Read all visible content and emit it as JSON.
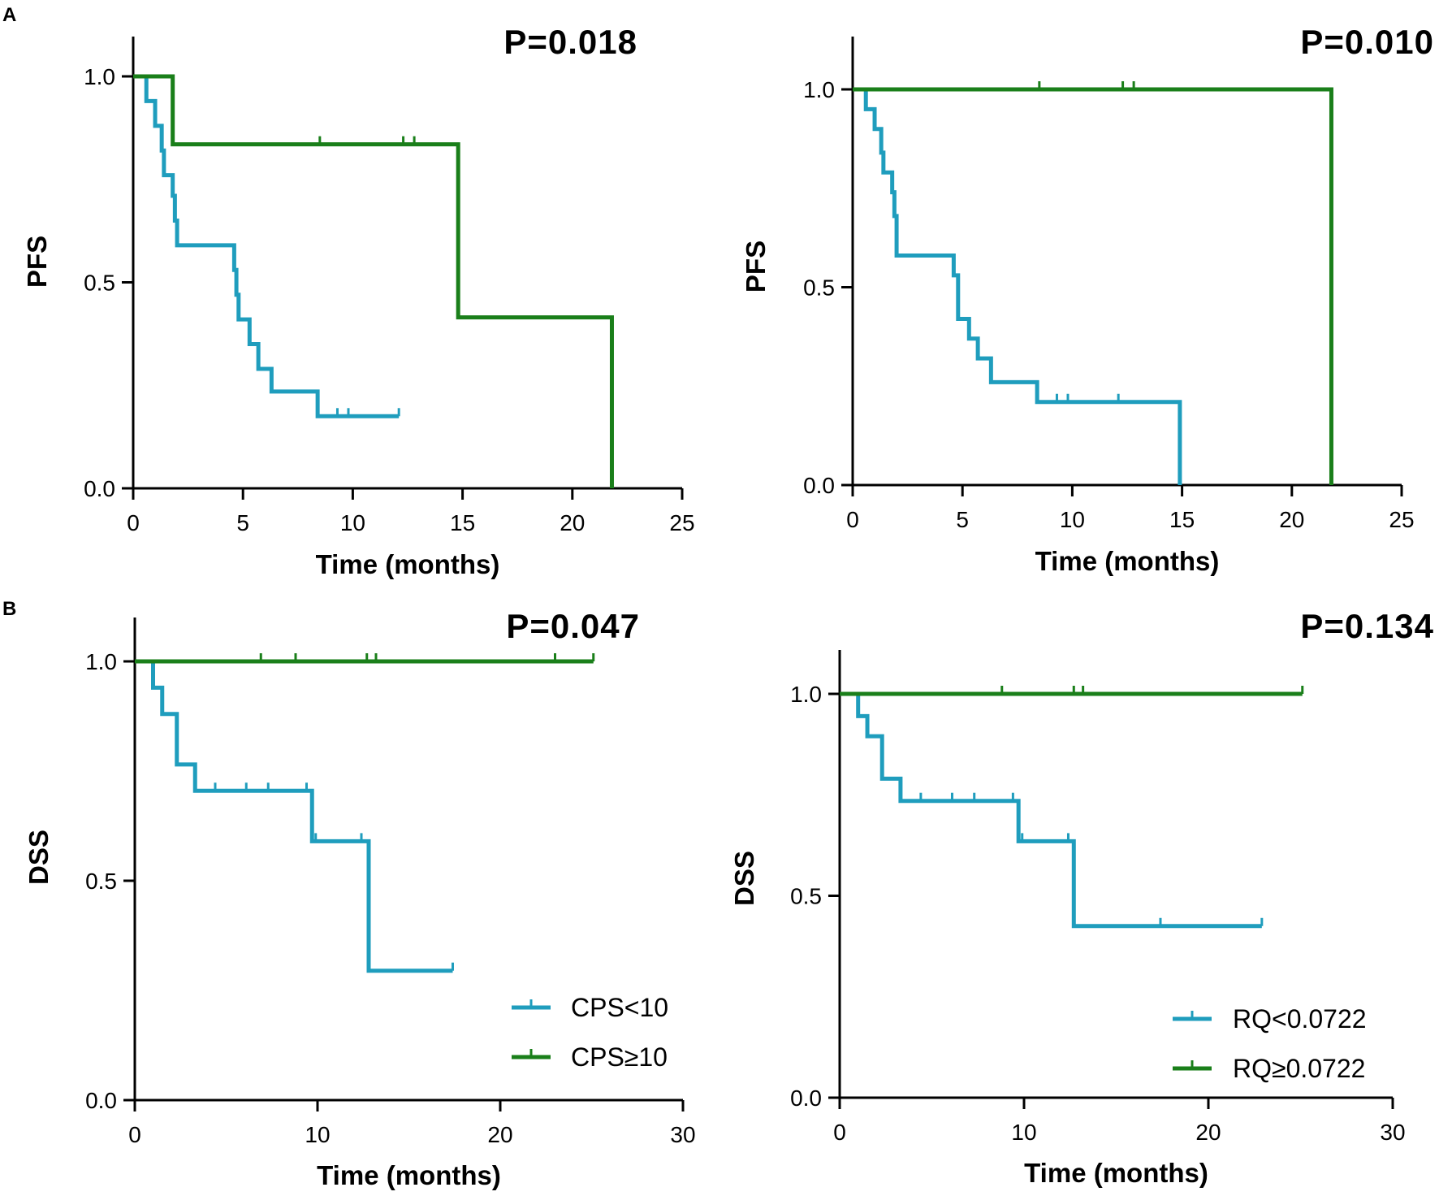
{
  "panel_labels": [
    "A",
    "B"
  ],
  "colors": {
    "group_low": "#1f9dbd",
    "group_high": "#1a7f1a",
    "axis": "#000000"
  },
  "chart_data": [
    {
      "type": "line",
      "subtype": "kaplan-meier",
      "panel": "A",
      "position": "top-left",
      "p_value": "P=0.018",
      "xlabel": "Time (months)",
      "ylabel": "PFS",
      "xlim": [
        0,
        25
      ],
      "ylim": [
        0,
        1.1
      ],
      "xticks": [
        0,
        5,
        10,
        15,
        20,
        25
      ],
      "xtick_labels": [
        "0",
        "5",
        "10",
        "15",
        "20",
        "25"
      ],
      "yticks": [
        0,
        0.5,
        1
      ],
      "ytick_labels": [
        "0.0",
        "0.5",
        "1.0"
      ],
      "series": [
        {
          "name": "CPS<10",
          "color": "#1f9dbd",
          "steps": [
            [
              0,
              1
            ],
            [
              0.6,
              0.94
            ],
            [
              1,
              0.88
            ],
            [
              1.3,
              0.82
            ],
            [
              1.4,
              0.76
            ],
            [
              1.8,
              0.71
            ],
            [
              1.9,
              0.65
            ],
            [
              2,
              0.59
            ],
            [
              4.6,
              0.53
            ],
            [
              4.7,
              0.47
            ],
            [
              4.8,
              0.41
            ],
            [
              5.3,
              0.35
            ],
            [
              5.7,
              0.29
            ],
            [
              6.3,
              0.235
            ],
            [
              8.4,
              0.175
            ]
          ],
          "end": 12.1,
          "censors": [
            [
              9.3,
              0.175
            ],
            [
              9.8,
              0.175
            ],
            [
              12.1,
              0.175
            ]
          ]
        },
        {
          "name": "CPS≥10",
          "color": "#1a7f1a",
          "steps": [
            [
              0,
              1
            ],
            [
              1.8,
              0.835
            ],
            [
              14.8,
              0.415
            ],
            [
              21.8,
              0
            ]
          ],
          "end": 21.8,
          "censors": [
            [
              8.5,
              0.835
            ],
            [
              12.3,
              0.835
            ],
            [
              12.8,
              0.835
            ]
          ]
        }
      ]
    },
    {
      "type": "line",
      "subtype": "kaplan-meier",
      "panel": "A",
      "position": "top-right",
      "p_value": "P=0.010",
      "xlabel": "Time (months)",
      "ylabel": "PFS",
      "xlim": [
        0,
        25
      ],
      "ylim": [
        0,
        1.1
      ],
      "xticks": [
        0,
        5,
        10,
        15,
        20,
        25
      ],
      "xtick_labels": [
        "0",
        "5",
        "10",
        "15",
        "20",
        "25"
      ],
      "yticks": [
        0,
        0.5,
        1
      ],
      "ytick_labels": [
        "0.0",
        "0.5",
        "1.0"
      ],
      "series": [
        {
          "name": "RQ<0.0722",
          "color": "#1f9dbd",
          "steps": [
            [
              0,
              1
            ],
            [
              0.6,
              0.95
            ],
            [
              1,
              0.9
            ],
            [
              1.3,
              0.84
            ],
            [
              1.4,
              0.79
            ],
            [
              1.8,
              0.74
            ],
            [
              1.9,
              0.68
            ],
            [
              2,
              0.58
            ],
            [
              4.6,
              0.53
            ],
            [
              4.8,
              0.42
            ],
            [
              5.3,
              0.37
            ],
            [
              5.7,
              0.32
            ],
            [
              6.3,
              0.26
            ],
            [
              8.4,
              0.21
            ],
            [
              14.9,
              0
            ]
          ],
          "end": 14.9,
          "censors": [
            [
              9.3,
              0.21
            ],
            [
              9.8,
              0.21
            ],
            [
              12.1,
              0.21
            ]
          ]
        },
        {
          "name": "RQ≥0.0722",
          "color": "#1a7f1a",
          "steps": [
            [
              0,
              1
            ],
            [
              21.8,
              0
            ]
          ],
          "end": 21.8,
          "censors": [
            [
              8.5,
              1
            ],
            [
              12.3,
              1
            ],
            [
              12.8,
              1
            ]
          ]
        }
      ]
    },
    {
      "type": "line",
      "subtype": "kaplan-meier",
      "panel": "B",
      "position": "bottom-left",
      "p_value": "P=0.047",
      "xlabel": "Time (months)",
      "ylabel": "DSS",
      "xlim": [
        0,
        30
      ],
      "ylim": [
        0,
        1.1
      ],
      "xticks": [
        0,
        10,
        20,
        30
      ],
      "xtick_labels": [
        "0",
        "10",
        "20",
        "30"
      ],
      "yticks": [
        0,
        0.5,
        1
      ],
      "ytick_labels": [
        "0.0",
        "0.5",
        "1.0"
      ],
      "series": [
        {
          "name": "CPS<10",
          "color": "#1f9dbd",
          "steps": [
            [
              0,
              1
            ],
            [
              1,
              0.94
            ],
            [
              1.5,
              0.88
            ],
            [
              2.3,
              0.765
            ],
            [
              3.3,
              0.705
            ],
            [
              9.7,
              0.59
            ],
            [
              12.8,
              0.295
            ]
          ],
          "end": 17.4,
          "censors": [
            [
              4.4,
              0.705
            ],
            [
              6.1,
              0.705
            ],
            [
              7.3,
              0.705
            ],
            [
              9.4,
              0.705
            ],
            [
              9.9,
              0.59
            ],
            [
              12.4,
              0.59
            ],
            [
              17.4,
              0.295
            ]
          ]
        },
        {
          "name": "CPS≥10",
          "color": "#1a7f1a",
          "steps": [
            [
              0,
              1
            ]
          ],
          "end": 25.1,
          "censors": [
            [
              6.9,
              1
            ],
            [
              8.8,
              1
            ],
            [
              12.7,
              1
            ],
            [
              13.2,
              1
            ],
            [
              23,
              1
            ],
            [
              25.1,
              1
            ]
          ]
        }
      ],
      "legend": {
        "location": "bottom-right",
        "entries": [
          "CPS<10",
          "CPS≥10"
        ]
      }
    },
    {
      "type": "line",
      "subtype": "kaplan-meier",
      "panel": "B",
      "position": "bottom-right",
      "p_value": "P=0.134",
      "xlabel": "Time (months)",
      "ylabel": "DSS",
      "xlim": [
        0,
        30
      ],
      "ylim": [
        0,
        1.1
      ],
      "xticks": [
        0,
        10,
        20,
        30
      ],
      "xtick_labels": [
        "0",
        "10",
        "20",
        "30"
      ],
      "yticks": [
        0,
        0.5,
        1
      ],
      "ytick_labels": [
        "0.0",
        "0.5",
        "1.0"
      ],
      "series": [
        {
          "name": "RQ<0.0722",
          "color": "#1f9dbd",
          "steps": [
            [
              0,
              1
            ],
            [
              1,
              0.945
            ],
            [
              1.5,
              0.895
            ],
            [
              2.3,
              0.79
            ],
            [
              3.3,
              0.735
            ],
            [
              9.7,
              0.635
            ],
            [
              12.7,
              0.425
            ]
          ],
          "end": 22.9,
          "censors": [
            [
              4.4,
              0.735
            ],
            [
              6.1,
              0.735
            ],
            [
              7.3,
              0.735
            ],
            [
              9.4,
              0.735
            ],
            [
              9.9,
              0.635
            ],
            [
              12.4,
              0.635
            ],
            [
              17.4,
              0.425
            ],
            [
              22.9,
              0.425
            ]
          ]
        },
        {
          "name": "RQ≥0.0722",
          "color": "#1a7f1a",
          "steps": [
            [
              0,
              1
            ]
          ],
          "end": 25.1,
          "censors": [
            [
              8.8,
              1
            ],
            [
              12.7,
              1
            ],
            [
              13.2,
              1
            ],
            [
              25.1,
              1
            ]
          ]
        }
      ],
      "legend": {
        "location": "bottom-right",
        "entries": [
          "RQ<0.0722",
          "RQ≥0.0722"
        ]
      }
    }
  ]
}
